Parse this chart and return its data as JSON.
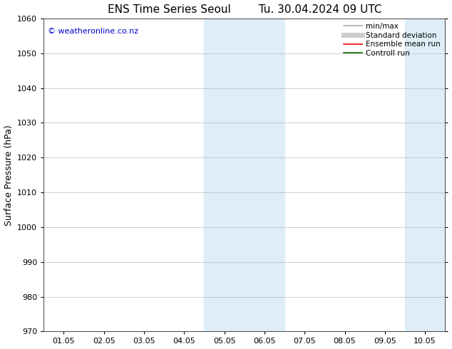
{
  "title": "ENS Time Series Seoul        Tu. 30.04.2024 09 UTC",
  "ylabel": "Surface Pressure (hPa)",
  "ylim": [
    970,
    1060
  ],
  "yticks": [
    970,
    980,
    990,
    1000,
    1010,
    1020,
    1030,
    1040,
    1050,
    1060
  ],
  "xtick_labels": [
    "01.05",
    "02.05",
    "03.05",
    "04.05",
    "05.05",
    "06.05",
    "07.05",
    "08.05",
    "09.05",
    "10.05"
  ],
  "xtick_positions": [
    0,
    1,
    2,
    3,
    4,
    5,
    6,
    7,
    8,
    9
  ],
  "xlim": [
    -0.5,
    9.5
  ],
  "shaded_regions": [
    {
      "start": 3.5,
      "end": 5.5,
      "color": "#ddeef8"
    },
    {
      "start": 8.5,
      "end": 9.5,
      "color": "#ddeef8"
    }
  ],
  "watermark": "© weatheronline.co.nz",
  "watermark_color": "#0000cc",
  "legend_items": [
    {
      "label": "min/max",
      "color": "#aaaaaa",
      "lw": 1.2,
      "ls": "-"
    },
    {
      "label": "Standard deviation",
      "color": "#cccccc",
      "lw": 5,
      "ls": "-"
    },
    {
      "label": "Ensemble mean run",
      "color": "#ff0000",
      "lw": 1.2,
      "ls": "-"
    },
    {
      "label": "Controll run",
      "color": "#006600",
      "lw": 1.2,
      "ls": "-"
    }
  ],
  "bg_color": "#ffffff",
  "grid_color": "#bbbbbb",
  "title_fontsize": 11,
  "label_fontsize": 9,
  "tick_fontsize": 8,
  "legend_fontsize": 7.5
}
